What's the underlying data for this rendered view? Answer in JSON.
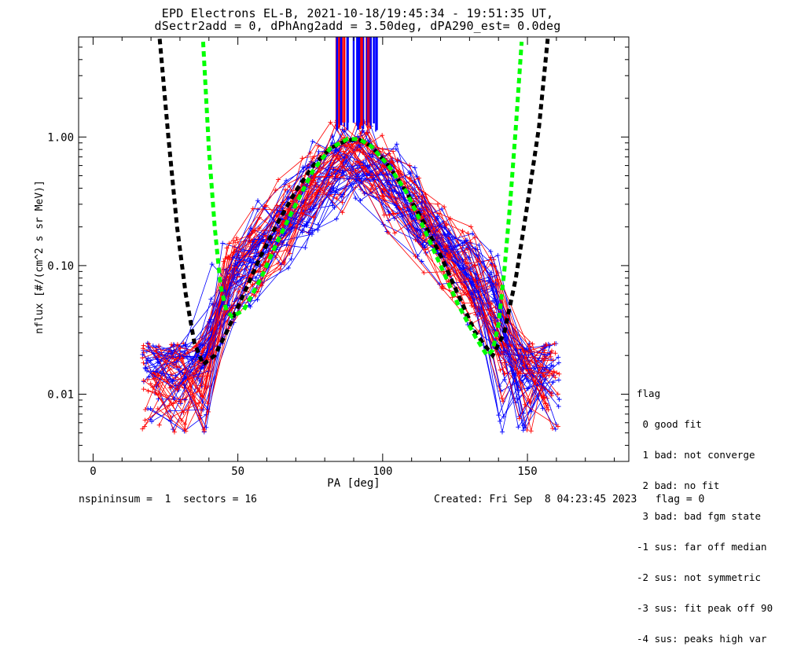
{
  "chart_data": {
    "type": "line",
    "title": "EPD Electrons EL-B, 2021-10-18/19:45:34 - 19:51:35 UT,",
    "subtitle": "dSectr2add = 0, dPhAng2add = 3.50deg, dPA290_est=    0.0deg",
    "xlabel": "PA [deg]",
    "ylabel": "nflux [#/(cm^2 s sr MeV)]",
    "xlim": [
      -5,
      185
    ],
    "ylim": [
      0.003,
      6.0
    ],
    "yscale": "log",
    "x_ticks": [
      0,
      50,
      100,
      150
    ],
    "x_tick_labels": [
      "0",
      "50",
      "100",
      "150"
    ],
    "y_ticks": [
      0.01,
      0.1,
      1.0
    ],
    "y_tick_labels": [
      "0.01",
      "0.10",
      "1.00"
    ],
    "series": [
      {
        "color": "#000000",
        "style": "dashed-thick",
        "x": [
          23,
          26,
          29,
          32,
          35,
          38,
          42,
          46,
          52,
          58,
          64,
          70,
          76,
          82,
          88,
          92,
          96,
          102,
          108,
          114,
          120,
          126,
          132,
          138,
          142,
          146,
          150,
          154,
          157
        ],
        "y": [
          5.8,
          1.0,
          0.2,
          0.06,
          0.025,
          0.017,
          0.02,
          0.03,
          0.06,
          0.12,
          0.22,
          0.38,
          0.6,
          0.82,
          0.95,
          0.95,
          0.85,
          0.6,
          0.38,
          0.22,
          0.12,
          0.06,
          0.03,
          0.02,
          0.03,
          0.08,
          0.3,
          1.2,
          5.8
        ]
      },
      {
        "color": "#00ff00",
        "style": "dashed-thick",
        "x": [
          38,
          40,
          42,
          44,
          46,
          48,
          52,
          58,
          64,
          70,
          76,
          82,
          88,
          92,
          96,
          102,
          108,
          114,
          120,
          126,
          132,
          136,
          138,
          140,
          142,
          144,
          146,
          148
        ],
        "y": [
          5.5,
          0.8,
          0.2,
          0.07,
          0.045,
          0.04,
          0.045,
          0.08,
          0.16,
          0.3,
          0.55,
          0.82,
          0.97,
          0.96,
          0.85,
          0.6,
          0.38,
          0.2,
          0.1,
          0.05,
          0.028,
          0.02,
          0.022,
          0.035,
          0.09,
          0.3,
          1.2,
          5.5
        ]
      }
    ],
    "grid": false
  },
  "legend": {
    "title": "flag",
    "entries": [
      " 0 good fit",
      " 1 bad: not converge",
      " 2 bad: no fit",
      " 3 bad: bad fgm state",
      "-1 sus: far off median",
      "-2 sus: not symmetric",
      "-3 sus: fit peak off 90",
      "-4 sus: peaks high var"
    ]
  },
  "footer": {
    "left": "nspininsum =  1  sectors = 16",
    "right": "Created: Fri Sep  8 04:23:45 2023   flag = 0"
  },
  "colors": {
    "trace_red": "#ff0000",
    "trace_blue": "#0000ff",
    "fit_black": "#000000",
    "fit_green": "#00ff00"
  }
}
